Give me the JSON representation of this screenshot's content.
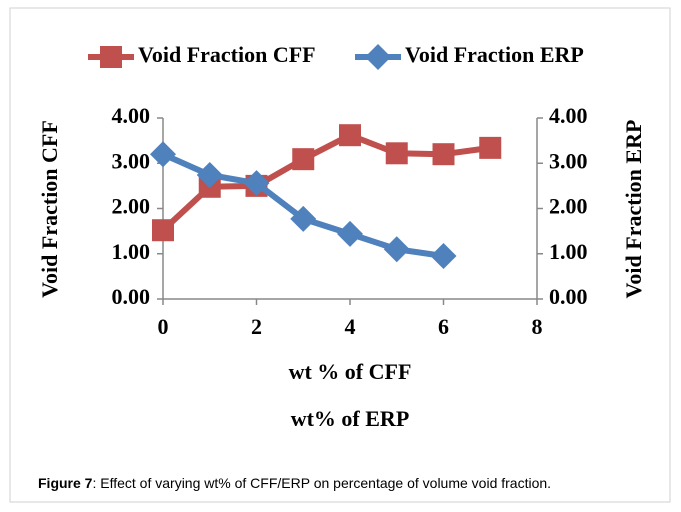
{
  "chart_data": {
    "type": "line",
    "x": [
      0,
      1,
      2,
      3,
      4,
      5,
      6,
      7
    ],
    "series": [
      {
        "name": "Void Fraction CFF",
        "color": "#c0504d",
        "marker": "square",
        "values": [
          1.52,
          2.48,
          2.5,
          3.09,
          3.62,
          3.22,
          3.2,
          3.34
        ]
      },
      {
        "name": "Void Fraction ERP",
        "color": "#4f81bd",
        "marker": "diamond",
        "axis": "y2",
        "values": [
          3.2,
          2.74,
          2.56,
          1.77,
          1.44,
          1.1,
          0.95,
          null
        ]
      }
    ],
    "xlim": [
      0,
      8
    ],
    "xticks": [
      0,
      2,
      4,
      6,
      8
    ],
    "ylim": [
      0,
      4
    ],
    "yticks": [
      {
        "value": 0,
        "label": "0.00"
      },
      {
        "value": 1,
        "label": "1.00"
      },
      {
        "value": 2,
        "label": "2.00"
      },
      {
        "value": 3,
        "label": "3.00"
      },
      {
        "value": 4,
        "label": "4.00"
      }
    ],
    "y2lim": [
      0,
      4
    ],
    "y2ticks": [
      {
        "value": 0,
        "label": "0.00"
      },
      {
        "value": 1,
        "label": "1.00"
      },
      {
        "value": 2,
        "label": "2.00"
      },
      {
        "value": 3,
        "label": "3.00"
      },
      {
        "value": 4,
        "label": "4.00"
      }
    ],
    "ylabel": "Void Fraction CFF",
    "y2label": "Void Fraction ERP",
    "xlabel": "wt % of CFF",
    "xlabel2": "wt% of ERP",
    "legend": "top"
  },
  "caption": {
    "label": "Figure 7",
    "text": ": Effect of varying wt% of CFF/ERP on percentage of volume void fraction."
  }
}
